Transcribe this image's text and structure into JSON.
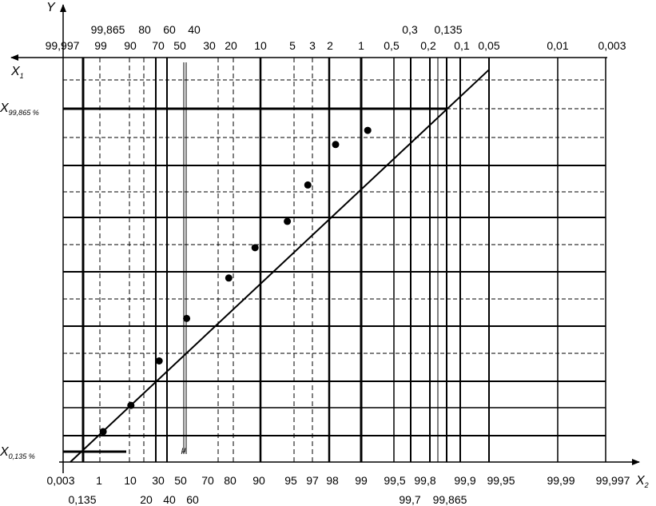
{
  "chart_data": {
    "type": "scatter",
    "title": "",
    "axes": {
      "y_name": "Y",
      "x1_name": "X",
      "x1_sub": "1",
      "x2_name": "X",
      "x2_sub": "2",
      "top_labels_row1": [
        "99,865",
        "80",
        "60",
        "40",
        "0,3",
        "0,135"
      ],
      "top_labels_row2": [
        "99,997",
        "99",
        "90",
        "70",
        "50",
        "30",
        "20",
        "10",
        "5",
        "3",
        "2",
        "1",
        "0,5",
        "0,2",
        "0,1",
        "0,05",
        "0,01",
        "0,003"
      ],
      "bottom_labels_row1": [
        "0,003",
        "1",
        "10",
        "30",
        "50",
        "70",
        "80",
        "90",
        "95",
        "97",
        "98",
        "99",
        "99,5",
        "99,8",
        "99,9",
        "99,95",
        "99,99",
        "99,997"
      ],
      "bottom_labels_row2": [
        "0,135",
        "20",
        "40",
        "60",
        "99,7",
        "99,865"
      ],
      "y_marker_upper": "X",
      "y_marker_upper_sub": "99,865 %",
      "y_marker_lower": "X",
      "y_marker_lower_sub": "0,135 %",
      "mean_marker": "μ"
    },
    "scale": "normal probability (x) vs linear (y)",
    "xlim_percent": [
      0.003,
      99.997
    ],
    "fit_line": {
      "from": {
        "x_percent": 0.0,
        "y_level": 0.0
      },
      "to": {
        "x_percent": 99.95,
        "y_level": 0.97
      }
    },
    "grid": true,
    "series": [
      {
        "values": [
          {
            "x_percent": 2,
            "y_level": 0.075
          },
          {
            "x_percent": 11,
            "y_level": 0.14
          },
          {
            "x_percent": 33,
            "y_level": 0.25
          },
          {
            "x_percent": 52,
            "y_level": 0.355
          },
          {
            "x_percent": 77,
            "y_level": 0.455
          },
          {
            "x_percent": 88,
            "y_level": 0.53
          },
          {
            "x_percent": 94,
            "y_level": 0.595
          },
          {
            "x_percent": 96.5,
            "y_level": 0.685
          },
          {
            "x_percent": 98.2,
            "y_level": 0.785
          },
          {
            "x_percent": 99.1,
            "y_level": 0.82
          }
        ]
      }
    ]
  }
}
